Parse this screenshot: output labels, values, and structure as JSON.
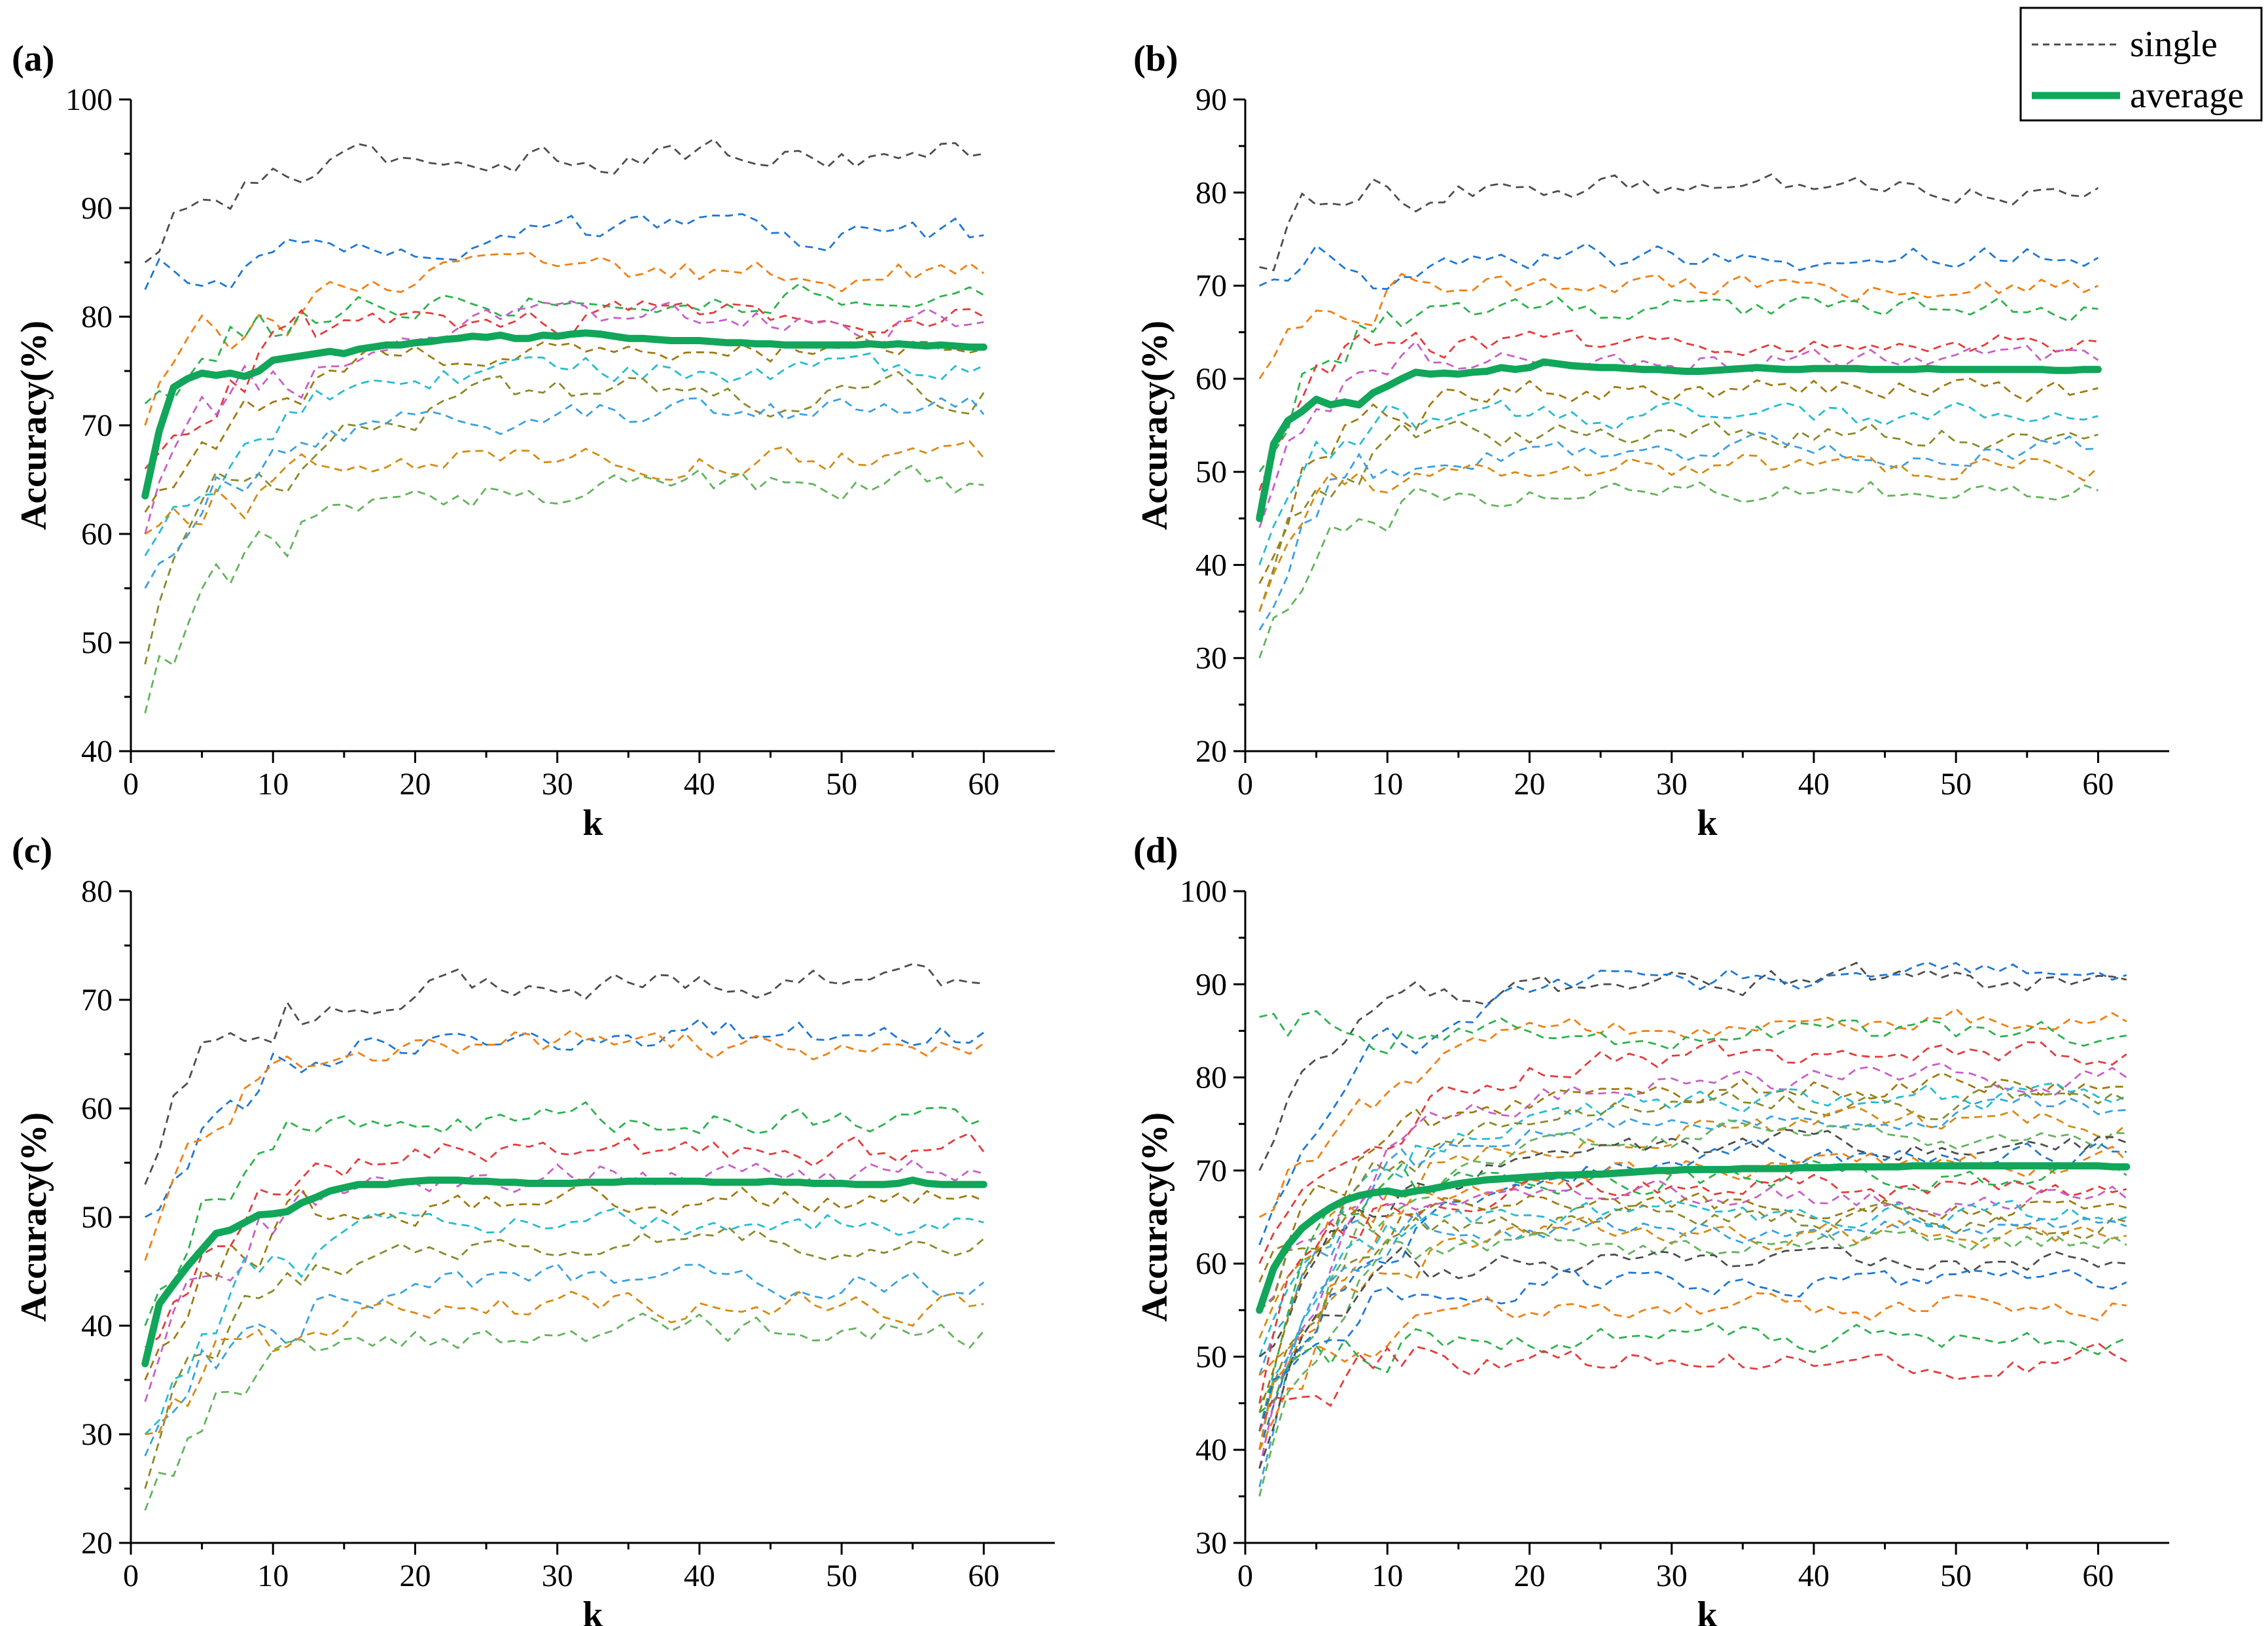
{
  "figure": {
    "legend": {
      "single_label": "single",
      "average_label": "average"
    },
    "colors": {
      "average": "#11a65a",
      "single": [
        "#4d4d4d",
        "#1f77d4",
        "#f07f12",
        "#2bb24c",
        "#e33b3b",
        "#c85ec8",
        "#a07a10",
        "#23bcd0",
        "#8a8a2a",
        "#3aa0e0",
        "#d68a12",
        "#63b35c"
      ]
    }
  },
  "chart_data": [
    {
      "panel": "(a)",
      "type": "line",
      "xlabel": "k",
      "ylabel": "Accuracy(%)",
      "xlim": [
        0,
        65
      ],
      "ylim": [
        40,
        100
      ],
      "xticks": [
        0,
        10,
        20,
        30,
        40,
        50,
        60
      ],
      "yticks": [
        40,
        50,
        60,
        70,
        80,
        90,
        100
      ],
      "tick_labels_x": [
        "0",
        "10",
        "20",
        "30",
        "40",
        "50",
        "60"
      ],
      "tick_labels_y": [
        "40",
        "50",
        "60",
        "70",
        "80",
        "90",
        "100"
      ],
      "x_range": [
        1,
        60
      ],
      "average": {
        "name": "average",
        "values": [
          63.5,
          69.5,
          73.5,
          74.3,
          74.8,
          74.6,
          74.8,
          74.5,
          75,
          76,
          76.2,
          76.4,
          76.6,
          76.8,
          76.6,
          77,
          77.2,
          77.4,
          77.4,
          77.6,
          77.7,
          77.9,
          78,
          78.2,
          78.1,
          78.3,
          78,
          78,
          78.3,
          78.2,
          78.4,
          78.5,
          78.4,
          78.2,
          78,
          78,
          77.9,
          77.8,
          77.8,
          77.8,
          77.7,
          77.6,
          77.6,
          77.5,
          77.5,
          77.4,
          77.4,
          77.4,
          77.4,
          77.4,
          77.4,
          77.5,
          77.4,
          77.5,
          77.4,
          77.3,
          77.4,
          77.3,
          77.2,
          77.2
        ]
      },
      "single": [
        {
          "name": "single",
          "start": 85.0,
          "end": 95.0
        },
        {
          "name": "single",
          "start": 82.5,
          "end": 87.5
        },
        {
          "name": "single",
          "start": 70.0,
          "end": 84.0
        },
        {
          "name": "single",
          "start": 72.0,
          "end": 82.0
        },
        {
          "name": "single",
          "start": 66.0,
          "end": 80.0
        },
        {
          "name": "single",
          "start": 60.0,
          "end": 79.5
        },
        {
          "name": "single",
          "start": 62.0,
          "end": 77.0
        },
        {
          "name": "single",
          "start": 58.0,
          "end": 75.5
        },
        {
          "name": "single",
          "start": 48.0,
          "end": 73.0
        },
        {
          "name": "single",
          "start": 55.0,
          "end": 71.0
        },
        {
          "name": "single",
          "start": 60.0,
          "end": 67.0
        },
        {
          "name": "single",
          "start": 43.5,
          "end": 64.5
        }
      ]
    },
    {
      "panel": "(b)",
      "type": "line",
      "xlabel": "k",
      "ylabel": "Accuracy(%)",
      "xlim": [
        0,
        65
      ],
      "ylim": [
        20,
        90
      ],
      "xticks": [
        0,
        10,
        20,
        30,
        40,
        50,
        60
      ],
      "yticks": [
        20,
        30,
        40,
        50,
        60,
        70,
        80,
        90
      ],
      "tick_labels_x": [
        "0",
        "10",
        "20",
        "30",
        "40",
        "50",
        "60"
      ],
      "tick_labels_y": [
        "20",
        "30",
        "40",
        "50",
        "60",
        "70",
        "80",
        "90"
      ],
      "x_range": [
        1,
        60
      ],
      "average": {
        "name": "average",
        "values": [
          45,
          53,
          55.5,
          56.5,
          57.8,
          57.2,
          57.5,
          57.2,
          58.5,
          59.2,
          60,
          60.7,
          60.5,
          60.6,
          60.5,
          60.7,
          60.8,
          61.2,
          61,
          61.2,
          61.8,
          61.6,
          61.4,
          61.3,
          61.2,
          61.2,
          61.1,
          61,
          61,
          60.9,
          60.8,
          60.8,
          60.9,
          61,
          61.1,
          61.2,
          61.1,
          61,
          61,
          61.1,
          61.1,
          61.1,
          61.1,
          61,
          61,
          61,
          61,
          61.1,
          61,
          61,
          61,
          61,
          61,
          61,
          61,
          61,
          60.9,
          60.9,
          61,
          61
        ]
      },
      "single": [
        {
          "name": "single",
          "start": 72.0,
          "end": 80.5
        },
        {
          "name": "single",
          "start": 70.0,
          "end": 73.0
        },
        {
          "name": "single",
          "start": 60.0,
          "end": 70.0
        },
        {
          "name": "single",
          "start": 50.0,
          "end": 67.5
        },
        {
          "name": "single",
          "start": 48.0,
          "end": 64.0
        },
        {
          "name": "single",
          "start": 44.0,
          "end": 62.0
        },
        {
          "name": "single",
          "start": 38.0,
          "end": 59.0
        },
        {
          "name": "single",
          "start": 40.0,
          "end": 56.0
        },
        {
          "name": "single",
          "start": 35.0,
          "end": 54.0
        },
        {
          "name": "single",
          "start": 33.0,
          "end": 52.5
        },
        {
          "name": "single",
          "start": 35.0,
          "end": 50.5
        },
        {
          "name": "single",
          "start": 30.0,
          "end": 48.0
        }
      ]
    },
    {
      "panel": "(c)",
      "type": "line",
      "xlabel": "k",
      "ylabel": "Accuracy(%)",
      "xlim": [
        0,
        65
      ],
      "ylim": [
        20,
        80
      ],
      "xticks": [
        0,
        10,
        20,
        30,
        40,
        50,
        60
      ],
      "yticks": [
        20,
        30,
        40,
        50,
        60,
        70,
        80
      ],
      "tick_labels_x": [
        "0",
        "10",
        "20",
        "30",
        "40",
        "50",
        "60"
      ],
      "tick_labels_y": [
        "20",
        "30",
        "40",
        "50",
        "60",
        "70",
        "80"
      ],
      "x_range": [
        1,
        60
      ],
      "average": {
        "name": "average",
        "values": [
          36.5,
          42,
          43.8,
          45.5,
          47,
          48.5,
          48.8,
          49.5,
          50.2,
          50.3,
          50.5,
          51.3,
          51.8,
          52.4,
          52.7,
          53,
          53,
          53,
          53.2,
          53.3,
          53.4,
          53.4,
          53.4,
          53.3,
          53.3,
          53.2,
          53.2,
          53.1,
          53.1,
          53.1,
          53.1,
          53.2,
          53.2,
          53.2,
          53.3,
          53.3,
          53.3,
          53.3,
          53.3,
          53.3,
          53.2,
          53.2,
          53.2,
          53.2,
          53.3,
          53.2,
          53.2,
          53.1,
          53.1,
          53.1,
          53,
          53,
          53,
          53.1,
          53.4,
          53.1,
          53,
          53,
          53,
          53
        ]
      },
      "single": [
        {
          "name": "single",
          "start": 53.0,
          "end": 71.5
        },
        {
          "name": "single",
          "start": 50.0,
          "end": 67.0
        },
        {
          "name": "single",
          "start": 46.0,
          "end": 66.0
        },
        {
          "name": "single",
          "start": 40.0,
          "end": 59.0
        },
        {
          "name": "single",
          "start": 38.0,
          "end": 56.0
        },
        {
          "name": "single",
          "start": 33.0,
          "end": 54.0
        },
        {
          "name": "single",
          "start": 35.0,
          "end": 51.5
        },
        {
          "name": "single",
          "start": 30.0,
          "end": 49.5
        },
        {
          "name": "single",
          "start": 25.0,
          "end": 48.0
        },
        {
          "name": "single",
          "start": 28.0,
          "end": 44.0
        },
        {
          "name": "single",
          "start": 30.0,
          "end": 42.0
        },
        {
          "name": "single",
          "start": 23.0,
          "end": 39.5
        }
      ]
    },
    {
      "panel": "(d)",
      "type": "line",
      "xlabel": "k",
      "ylabel": "Accuracy(%)",
      "xlim": [
        0,
        65
      ],
      "ylim": [
        30,
        100
      ],
      "xticks": [
        0,
        10,
        20,
        30,
        40,
        50,
        60
      ],
      "yticks": [
        30,
        40,
        50,
        60,
        70,
        80,
        90,
        100
      ],
      "tick_labels_x": [
        "0",
        "10",
        "20",
        "30",
        "40",
        "50",
        "60"
      ],
      "tick_labels_y": [
        "30",
        "40",
        "50",
        "60",
        "70",
        "80",
        "90",
        "100"
      ],
      "x_range": [
        1,
        62
      ],
      "average": {
        "name": "average",
        "values": [
          55,
          59.5,
          62,
          63.8,
          65,
          66,
          66.8,
          67.3,
          67.6,
          67.8,
          67.5,
          67.8,
          68,
          68.3,
          68.6,
          68.8,
          69,
          69.1,
          69.2,
          69.3,
          69.4,
          69.5,
          69.5,
          69.6,
          69.6,
          69.7,
          69.8,
          69.9,
          70,
          70,
          70.1,
          70.1,
          70.1,
          70.1,
          70.2,
          70.2,
          70.2,
          70.2,
          70.3,
          70.3,
          70.3,
          70.4,
          70.4,
          70.4,
          70.4,
          70.4,
          70.5,
          70.5,
          70.5,
          70.5,
          70.5,
          70.5,
          70.5,
          70.5,
          70.5,
          70.5,
          70.5,
          70.5,
          70.5,
          70.5,
          70.4,
          70.4
        ]
      },
      "single": [
        {
          "name": "single",
          "start": 70.0,
          "end": 90.5
        },
        {
          "name": "single",
          "start": 62.0,
          "end": 91.0
        },
        {
          "name": "single",
          "start": 65.0,
          "end": 86.0
        },
        {
          "name": "single",
          "start": 86.5,
          "end": 84.5
        },
        {
          "name": "single",
          "start": 60.0,
          "end": 82.5
        },
        {
          "name": "single",
          "start": 55.0,
          "end": 80.0
        },
        {
          "name": "single",
          "start": 58.0,
          "end": 79.0
        },
        {
          "name": "single",
          "start": 50.0,
          "end": 78.0
        },
        {
          "name": "single",
          "start": 55.0,
          "end": 77.5
        },
        {
          "name": "single",
          "start": 48.0,
          "end": 76.5
        },
        {
          "name": "single",
          "start": 52.0,
          "end": 75.0
        },
        {
          "name": "single",
          "start": 45.0,
          "end": 74.0
        },
        {
          "name": "single",
          "start": 50.0,
          "end": 73.0
        },
        {
          "name": "single",
          "start": 40.0,
          "end": 72.0
        },
        {
          "name": "single",
          "start": 48.0,
          "end": 71.0
        },
        {
          "name": "single",
          "start": 42.0,
          "end": 69.5
        },
        {
          "name": "single",
          "start": 45.0,
          "end": 68.0
        },
        {
          "name": "single",
          "start": 38.0,
          "end": 67.0
        },
        {
          "name": "single",
          "start": 44.0,
          "end": 66.0
        },
        {
          "name": "single",
          "start": 40.0,
          "end": 65.0
        },
        {
          "name": "single",
          "start": 42.0,
          "end": 64.5
        },
        {
          "name": "single",
          "start": 36.0,
          "end": 64.0
        },
        {
          "name": "single",
          "start": 40.0,
          "end": 63.0
        },
        {
          "name": "single",
          "start": 35.0,
          "end": 62.0
        },
        {
          "name": "single",
          "start": 38.0,
          "end": 60.0
        },
        {
          "name": "single",
          "start": 42.0,
          "end": 58.0
        },
        {
          "name": "single",
          "start": 40.0,
          "end": 55.5
        },
        {
          "name": "single",
          "start": 44.0,
          "end": 52.0
        },
        {
          "name": "single",
          "start": 42.0,
          "end": 49.5
        }
      ]
    }
  ]
}
